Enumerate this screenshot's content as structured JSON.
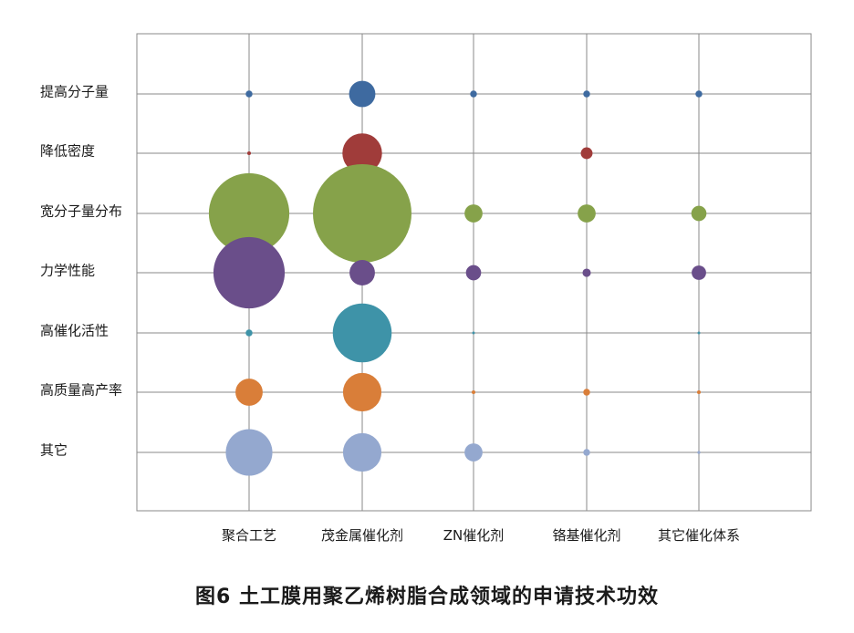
{
  "caption": "图6 土工膜用聚乙烯树脂合成领域的申请技术功效",
  "chart_data": {
    "type": "bubble",
    "title": "图6 土工膜用聚乙烯树脂合成领域的申请技术功效",
    "xlabel": "",
    "ylabel": "",
    "grid": true,
    "legend": "none",
    "x_categories": [
      "聚合工艺",
      "茂金属催化剂",
      "ZN催化剂",
      "铬基催化剂",
      "其它催化体系"
    ],
    "y_categories": [
      "提高分子量",
      "降低密度",
      "宽分子量分布",
      "力学性能",
      "高催化活性",
      "高质量高产率",
      "其它"
    ],
    "series": [
      {
        "name": "提高分子量",
        "color": "#3e6aa0",
        "sizes": [
          1,
          15,
          1,
          1,
          1
        ]
      },
      {
        "name": "降低密度",
        "color": "#a03c3a",
        "sizes": [
          0.3,
          34,
          0,
          3,
          0
        ]
      },
      {
        "name": "宽分子量分布",
        "color": "#86a24a",
        "sizes": [
          140,
          210,
          7,
          7,
          5
        ]
      },
      {
        "name": "力学性能",
        "color": "#6a4e8a",
        "sizes": [
          110,
          14,
          5,
          1.5,
          4.5
        ]
      },
      {
        "name": "高催化活性",
        "color": "#3e93a8",
        "sizes": [
          1,
          75,
          0.15,
          0,
          0.15
        ]
      },
      {
        "name": "高质量高产率",
        "color": "#d97e39",
        "sizes": [
          16,
          32,
          0.3,
          1,
          0.3
        ]
      },
      {
        "name": "其它",
        "color": "#94a8cf",
        "sizes": [
          47,
          32,
          7,
          1,
          0.2
        ]
      }
    ]
  }
}
